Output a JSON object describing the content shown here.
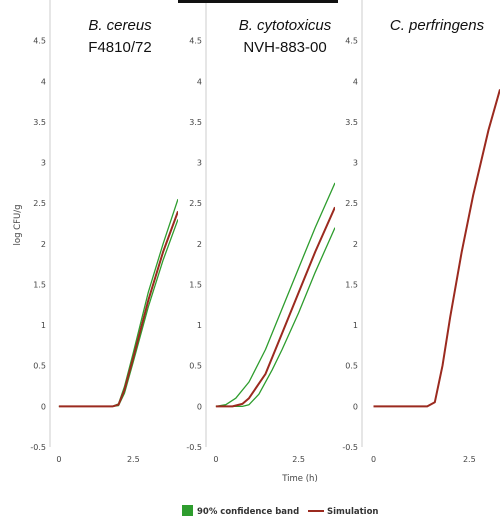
{
  "chart_data": {
    "type": "line",
    "ylabel": "log CFU/g",
    "xlabel": "Time (h)",
    "ylim": [
      -0.5,
      5
    ],
    "yticks": [
      "-0.5",
      "0",
      "0.5",
      "1",
      "1.5",
      "2",
      "2.5",
      "3",
      "3.5",
      "4",
      "4.5"
    ],
    "xticks": [
      "0",
      "2.5"
    ],
    "grid": false,
    "legend": {
      "position": "bottom-center",
      "entries": [
        {
          "label": "90% confidence band",
          "color": "#2e9d2e",
          "kind": "swatch"
        },
        {
          "label": "Simulation",
          "color": "#9b2a1f",
          "kind": "line"
        }
      ]
    },
    "panels": [
      {
        "title": "B. cereus",
        "subtitle": "F4810/72",
        "xlim": [
          -0.3,
          4
        ],
        "series": [
          {
            "name": "Simulation",
            "color": "#9b2a1f",
            "x": [
              0,
              1.8,
              2.0,
              2.2,
              2.5,
              3.0,
              3.5,
              4.0
            ],
            "y": [
              0,
              0,
              0.02,
              0.2,
              0.6,
              1.3,
              1.9,
              2.4
            ]
          },
          {
            "name": "90% confidence band upper",
            "color": "#2e9d2e",
            "x": [
              0,
              1.8,
              2.0,
              2.2,
              2.5,
              3.0,
              3.5,
              4.0
            ],
            "y": [
              0,
              0,
              0.03,
              0.24,
              0.66,
              1.4,
              2.0,
              2.55
            ]
          },
          {
            "name": "90% confidence band lower",
            "color": "#2e9d2e",
            "x": [
              0,
              1.8,
              2.0,
              2.2,
              2.5,
              3.0,
              3.5,
              4.0
            ],
            "y": [
              0,
              0,
              0.01,
              0.16,
              0.55,
              1.22,
              1.8,
              2.3
            ]
          }
        ]
      },
      {
        "title": "B. cytotoxicus",
        "subtitle": "NVH-883-00",
        "xlim": [
          -0.3,
          3.6
        ],
        "series": [
          {
            "name": "Simulation",
            "color": "#9b2a1f",
            "x": [
              0,
              0.5,
              0.8,
              1.0,
              1.5,
              2.0,
              2.5,
              3.0,
              3.6
            ],
            "y": [
              0,
              0,
              0.03,
              0.1,
              0.4,
              0.9,
              1.4,
              1.9,
              2.45
            ]
          },
          {
            "name": "90% confidence band upper",
            "color": "#2e9d2e",
            "x": [
              0,
              0.3,
              0.6,
              1.0,
              1.5,
              2.0,
              2.5,
              3.0,
              3.6
            ],
            "y": [
              0,
              0.02,
              0.1,
              0.3,
              0.7,
              1.2,
              1.7,
              2.2,
              2.75
            ]
          },
          {
            "name": "90% confidence band lower",
            "color": "#2e9d2e",
            "x": [
              0,
              0.8,
              1.0,
              1.3,
              1.7,
              2.0,
              2.5,
              3.0,
              3.6
            ],
            "y": [
              0,
              0,
              0.02,
              0.15,
              0.45,
              0.7,
              1.15,
              1.65,
              2.2
            ]
          }
        ]
      },
      {
        "title": "C. perfringens",
        "subtitle": "",
        "xlim": [
          -0.3,
          3.3
        ],
        "series": [
          {
            "name": "Simulation",
            "color": "#9b2a1f",
            "x": [
              0,
              1.4,
              1.6,
              1.8,
              2.0,
              2.3,
              2.6,
              3.0,
              3.3
            ],
            "y": [
              0,
              0,
              0.05,
              0.5,
              1.1,
              1.9,
              2.6,
              3.4,
              3.9
            ]
          }
        ]
      }
    ]
  }
}
